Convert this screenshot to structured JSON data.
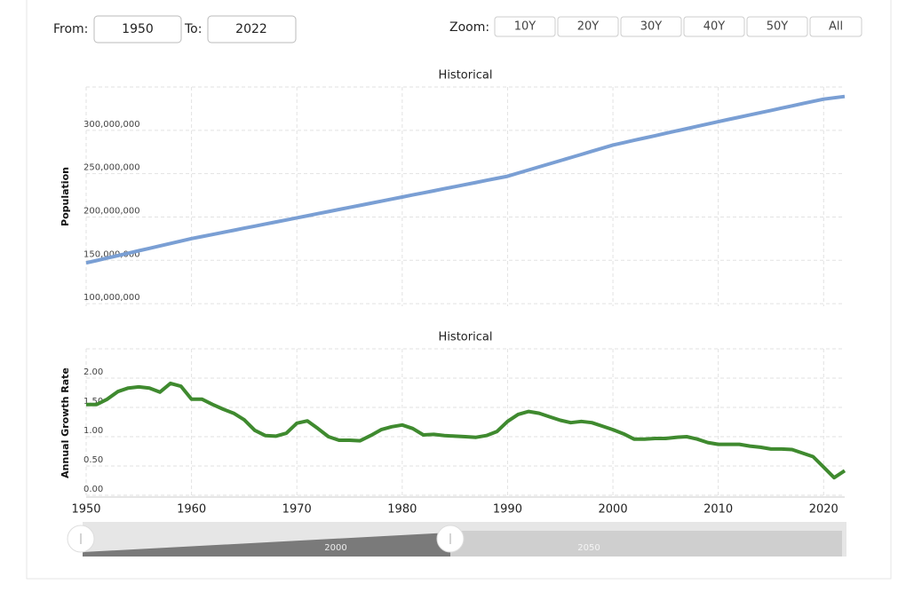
{
  "controls": {
    "from_label": "From:",
    "from_value": "1950",
    "to_label": "To:",
    "to_value": "2022",
    "zoom_label": "Zoom:",
    "zoom_buttons": [
      "10Y",
      "20Y",
      "30Y",
      "40Y",
      "50Y",
      "All"
    ]
  },
  "chart_data": [
    {
      "type": "line",
      "title": "Historical",
      "y_label": "Population",
      "color": "#7a9fd4",
      "grid": true,
      "x_axis_labels": false,
      "x": [
        1950,
        1951,
        1952,
        1953,
        1954,
        1955,
        1956,
        1957,
        1958,
        1959,
        1960,
        1961,
        1962,
        1963,
        1964,
        1965,
        1966,
        1967,
        1968,
        1969,
        1970,
        1971,
        1972,
        1973,
        1974,
        1975,
        1976,
        1977,
        1978,
        1979,
        1980,
        1981,
        1982,
        1983,
        1984,
        1985,
        1986,
        1987,
        1988,
        1989,
        1990,
        1991,
        1992,
        1993,
        1994,
        1995,
        1996,
        1997,
        1998,
        1999,
        2000,
        2001,
        2002,
        2003,
        2004,
        2005,
        2006,
        2007,
        2008,
        2009,
        2010,
        2011,
        2012,
        2013,
        2014,
        2015,
        2016,
        2017,
        2018,
        2019,
        2020,
        2021,
        2022
      ],
      "values": [
        147000000,
        149800000,
        152600000,
        155400000,
        158200000,
        161000000,
        163800000,
        166600000,
        169400000,
        172200000,
        175000000,
        177400000,
        179800000,
        182200000,
        184600000,
        187000000,
        189400000,
        191800000,
        194200000,
        196600000,
        199000000,
        201400000,
        203800000,
        206200000,
        208600000,
        211000000,
        213400000,
        215800000,
        218200000,
        220600000,
        223000000,
        225400000,
        227800000,
        230200000,
        232600000,
        235000000,
        237400000,
        239800000,
        242200000,
        244600000,
        247000000,
        250600000,
        254200000,
        257800000,
        261400000,
        265000000,
        268600000,
        272200000,
        275800000,
        279400000,
        283000000,
        285700000,
        288400000,
        291100000,
        293800000,
        296500000,
        299200000,
        301900000,
        304600000,
        307300000,
        310000000,
        312600000,
        315200000,
        317800000,
        320400000,
        323000000,
        325600000,
        328200000,
        330800000,
        333400000,
        336000000,
        337500000,
        339000000
      ],
      "xlim": [
        1950,
        2022
      ],
      "xticks": [
        1950,
        1960,
        1970,
        1980,
        1990,
        2000,
        2010,
        2020
      ],
      "ylim": [
        97000000,
        350000000
      ],
      "yticks": [
        {
          "value": 100000000,
          "label": "100,000,000"
        },
        {
          "value": 150000000,
          "label": "150,000,000"
        },
        {
          "value": 200000000,
          "label": "200,000,000"
        },
        {
          "value": 250000000,
          "label": "250,000,000"
        },
        {
          "value": 300000000,
          "label": "300,000,000"
        }
      ]
    },
    {
      "type": "line",
      "title": "Historical",
      "y_label": "Annual Growth Rate",
      "color": "#3f8a2f",
      "grid": true,
      "x_axis_labels": true,
      "x": [
        1950,
        1951,
        1952,
        1953,
        1954,
        1955,
        1956,
        1957,
        1958,
        1959,
        1960,
        1961,
        1962,
        1963,
        1964,
        1965,
        1966,
        1967,
        1968,
        1969,
        1970,
        1971,
        1972,
        1973,
        1974,
        1975,
        1976,
        1977,
        1978,
        1979,
        1980,
        1981,
        1982,
        1983,
        1984,
        1985,
        1986,
        1987,
        1988,
        1989,
        1990,
        1991,
        1992,
        1993,
        1994,
        1995,
        1996,
        1997,
        1998,
        1999,
        2000,
        2001,
        2002,
        2003,
        2004,
        2005,
        2006,
        2007,
        2008,
        2009,
        2010,
        2011,
        2012,
        2013,
        2014,
        2015,
        2016,
        2017,
        2018,
        2019,
        2020,
        2021,
        2022
      ],
      "values": [
        1.55,
        1.55,
        1.64,
        1.77,
        1.83,
        1.85,
        1.83,
        1.76,
        1.91,
        1.86,
        1.64,
        1.64,
        1.55,
        1.47,
        1.4,
        1.29,
        1.11,
        1.02,
        1.01,
        1.06,
        1.23,
        1.27,
        1.14,
        1.0,
        0.94,
        0.94,
        0.93,
        1.02,
        1.12,
        1.17,
        1.2,
        1.14,
        1.03,
        1.04,
        1.02,
        1.01,
        1.0,
        0.99,
        1.02,
        1.09,
        1.26,
        1.38,
        1.43,
        1.4,
        1.34,
        1.28,
        1.24,
        1.26,
        1.24,
        1.18,
        1.12,
        1.05,
        0.96,
        0.96,
        0.97,
        0.97,
        0.99,
        1.0,
        0.96,
        0.9,
        0.87,
        0.87,
        0.87,
        0.84,
        0.82,
        0.79,
        0.79,
        0.78,
        0.72,
        0.66,
        0.48,
        0.3,
        0.42
      ],
      "xlim": [
        1950,
        2022
      ],
      "xticks": [
        1950,
        1960,
        1970,
        1980,
        1990,
        2000,
        2010,
        2020
      ],
      "ylim": [
        -0.03,
        2.5
      ],
      "yticks": [
        {
          "value": 0,
          "label": "0.00"
        },
        {
          "value": 0.5,
          "label": "0.50"
        },
        {
          "value": 1,
          "label": "1.00"
        },
        {
          "value": 1.5,
          "label": "1.50"
        },
        {
          "value": 2,
          "label": "2.00"
        }
      ]
    }
  ],
  "navigator": {
    "labels": [
      "2000",
      "2050"
    ]
  }
}
